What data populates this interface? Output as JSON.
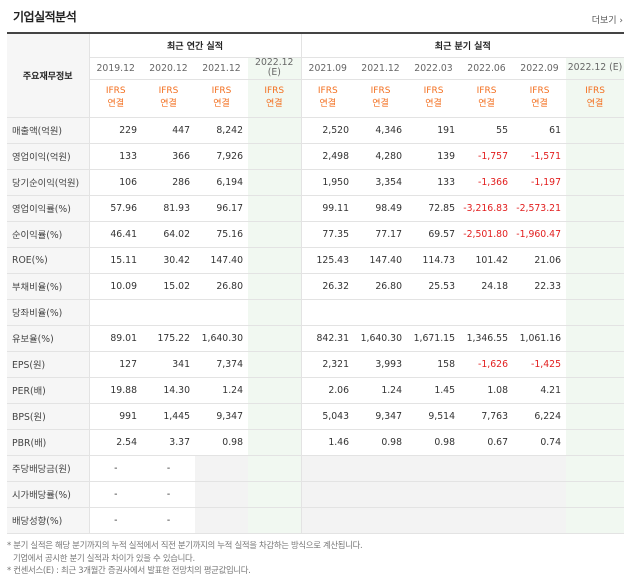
{
  "header": {
    "title": "기업실적분석",
    "more_label": "더보기 ›"
  },
  "table": {
    "corner_label": "주요재무정보",
    "group_annual": "최근 연간 실적",
    "group_quarter": "최근 분기 실적",
    "periods": [
      "2019.12",
      "2020.12",
      "2021.12",
      "2022.12 (E)",
      "2021.09",
      "2021.12",
      "2022.03",
      "2022.06",
      "2022.09",
      "2022.12 (E)"
    ],
    "basis": "IFRS 연결",
    "rows": [
      {
        "label": "매출액(억원)",
        "values": [
          "229",
          "447",
          "8,242",
          "",
          "2,520",
          "4,346",
          "191",
          "55",
          "61",
          ""
        ]
      },
      {
        "label": "영업이익(억원)",
        "values": [
          "133",
          "366",
          "7,926",
          "",
          "2,498",
          "4,280",
          "139",
          "-1,757",
          "-1,571",
          ""
        ]
      },
      {
        "label": "당기순이익(억원)",
        "values": [
          "106",
          "286",
          "6,194",
          "",
          "1,950",
          "3,354",
          "133",
          "-1,366",
          "-1,197",
          ""
        ]
      },
      {
        "label": "영업이익률(%)",
        "values": [
          "57.96",
          "81.93",
          "96.17",
          "",
          "99.11",
          "98.49",
          "72.85",
          "-3,216.83",
          "-2,573.21",
          ""
        ]
      },
      {
        "label": "순이익률(%)",
        "values": [
          "46.41",
          "64.02",
          "75.16",
          "",
          "77.35",
          "77.17",
          "69.57",
          "-2,501.80",
          "-1,960.47",
          ""
        ]
      },
      {
        "label": "ROE(%)",
        "values": [
          "15.11",
          "30.42",
          "147.40",
          "",
          "125.43",
          "147.40",
          "114.73",
          "101.42",
          "21.06",
          ""
        ]
      },
      {
        "label": "부채비율(%)",
        "values": [
          "10.09",
          "15.02",
          "26.80",
          "",
          "26.32",
          "26.80",
          "25.53",
          "24.18",
          "22.33",
          ""
        ]
      },
      {
        "label": "당좌비율(%)",
        "values": [
          "",
          "",
          "",
          "",
          "",
          "",
          "",
          "",
          "",
          ""
        ]
      },
      {
        "label": "유보율(%)",
        "values": [
          "89.01",
          "175.22",
          "1,640.30",
          "",
          "842.31",
          "1,640.30",
          "1,671.15",
          "1,346.55",
          "1,061.16",
          ""
        ]
      },
      {
        "label": "EPS(원)",
        "values": [
          "127",
          "341",
          "7,374",
          "",
          "2,321",
          "3,993",
          "158",
          "-1,626",
          "-1,425",
          ""
        ]
      },
      {
        "label": "PER(배)",
        "values": [
          "19.88",
          "14.30",
          "1.24",
          "",
          "2.06",
          "1.24",
          "1.45",
          "1.08",
          "4.21",
          ""
        ]
      },
      {
        "label": "BPS(원)",
        "values": [
          "991",
          "1,445",
          "9,347",
          "",
          "5,043",
          "9,347",
          "9,514",
          "7,763",
          "6,224",
          ""
        ]
      },
      {
        "label": "PBR(배)",
        "values": [
          "2.54",
          "3.37",
          "0.98",
          "",
          "1.46",
          "0.98",
          "0.98",
          "0.67",
          "0.74",
          ""
        ]
      },
      {
        "label": "주당배당금(원)",
        "values": [
          "-",
          "-",
          "",
          "",
          "",
          "",
          "",
          "",
          "",
          ""
        ]
      },
      {
        "label": "시가배당률(%)",
        "values": [
          "-",
          "-",
          "",
          "",
          "",
          "",
          "",
          "",
          "",
          ""
        ]
      },
      {
        "label": "배당성향(%)",
        "values": [
          "-",
          "-",
          "",
          "",
          "",
          "",
          "",
          "",
          "",
          ""
        ]
      }
    ]
  },
  "notes": [
    "* 분기 실적은 해당 분기까지의 누적 실적에서 직전 분기까지의 누적 실적을 차감하는 방식으로 계산됩니다.",
    "  기업에서 공시한 분기 실적과 차이가 있을 수 있습니다.",
    "* 컨센서스(E) : 최근 3개월간 증권사에서 발표한 전망치의 평균값입니다."
  ]
}
